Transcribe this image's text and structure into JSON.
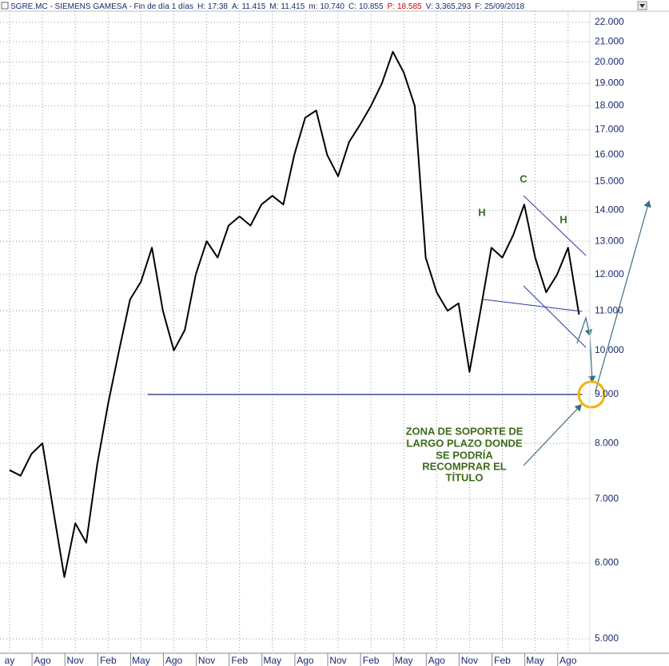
{
  "chart_data": {
    "type": "line",
    "title": "SGRE.MC - SIEMENS GAMESA - Fin de día 1 días",
    "stats": [
      {
        "label": "H:",
        "value": "17:38"
      },
      {
        "label": "A:",
        "value": "11.415"
      },
      {
        "label": "M:",
        "value": "11.415"
      },
      {
        "label": "m:",
        "value": "10.740"
      },
      {
        "label": "C:",
        "value": "10.855"
      },
      {
        "label": "P:",
        "value": "18.585"
      },
      {
        "label": "V:",
        "value": "3,365,293"
      },
      {
        "label": "F:",
        "value": "25/09/2018"
      }
    ],
    "categories": [
      "ay",
      null,
      null,
      "Ago",
      null,
      null,
      "Nov",
      null,
      null,
      "Feb",
      null,
      null,
      "May",
      null,
      null,
      "Ago",
      null,
      null,
      "Nov",
      null,
      null,
      "Feb",
      null,
      null,
      "May",
      null,
      null,
      "Ago",
      null,
      null,
      "Nov",
      null,
      null,
      "Feb",
      null,
      null,
      "May",
      null,
      null,
      "Ago",
      null,
      null,
      "Nov",
      null,
      null,
      "Feb",
      null,
      null,
      "May",
      null,
      null,
      "Ago",
      null
    ],
    "values": [
      7.5,
      7.4,
      7.8,
      8.0,
      6.8,
      5.8,
      6.6,
      6.3,
      7.6,
      8.8,
      10.0,
      11.3,
      11.8,
      12.8,
      11.0,
      10.0,
      10.5,
      12.0,
      13.0,
      12.5,
      13.5,
      13.8,
      13.5,
      14.2,
      14.5,
      14.2,
      16.0,
      17.5,
      17.8,
      16.0,
      15.2,
      16.5,
      17.2,
      18.0,
      19.0,
      20.5,
      19.5,
      18.0,
      12.5,
      11.5,
      11.0,
      11.2,
      9.5,
      11.0,
      12.8,
      12.5,
      13.2,
      14.2,
      12.5,
      11.5,
      12.0,
      12.8,
      10.9
    ],
    "color": "#000000",
    "log_scale": true,
    "grid": true,
    "ylim": [
      4.83,
      22.6
    ],
    "yticks": [
      {
        "value": 5,
        "label": "5.000"
      },
      {
        "value": 6,
        "label": "6.000"
      },
      {
        "value": 7,
        "label": "7.000"
      },
      {
        "value": 8,
        "label": "8.000"
      },
      {
        "value": 9,
        "label": "9.000"
      },
      {
        "value": 10,
        "label": "10.000"
      },
      {
        "value": 11,
        "label": "11.000"
      },
      {
        "value": 12,
        "label": "12.000"
      },
      {
        "value": 13,
        "label": "13.000"
      },
      {
        "value": 14,
        "label": "14.000"
      },
      {
        "value": 15,
        "label": "15.000"
      },
      {
        "value": 16,
        "label": "16.000"
      },
      {
        "value": 17,
        "label": "17.000"
      },
      {
        "value": 18,
        "label": "18.000"
      },
      {
        "value": 19,
        "label": "19.000"
      },
      {
        "value": 20,
        "label": "20.000"
      },
      {
        "value": 21,
        "label": "21.000"
      },
      {
        "value": 22,
        "label": "22.000"
      }
    ],
    "annotations": [
      "C",
      "H",
      "H"
    ],
    "note": [
      "ZONA DE SOPORTE DE",
      "LARGO PLAZO DONDE",
      "SE PODRÍA",
      "RECOMPRAR EL",
      "TÍTULO"
    ]
  }
}
